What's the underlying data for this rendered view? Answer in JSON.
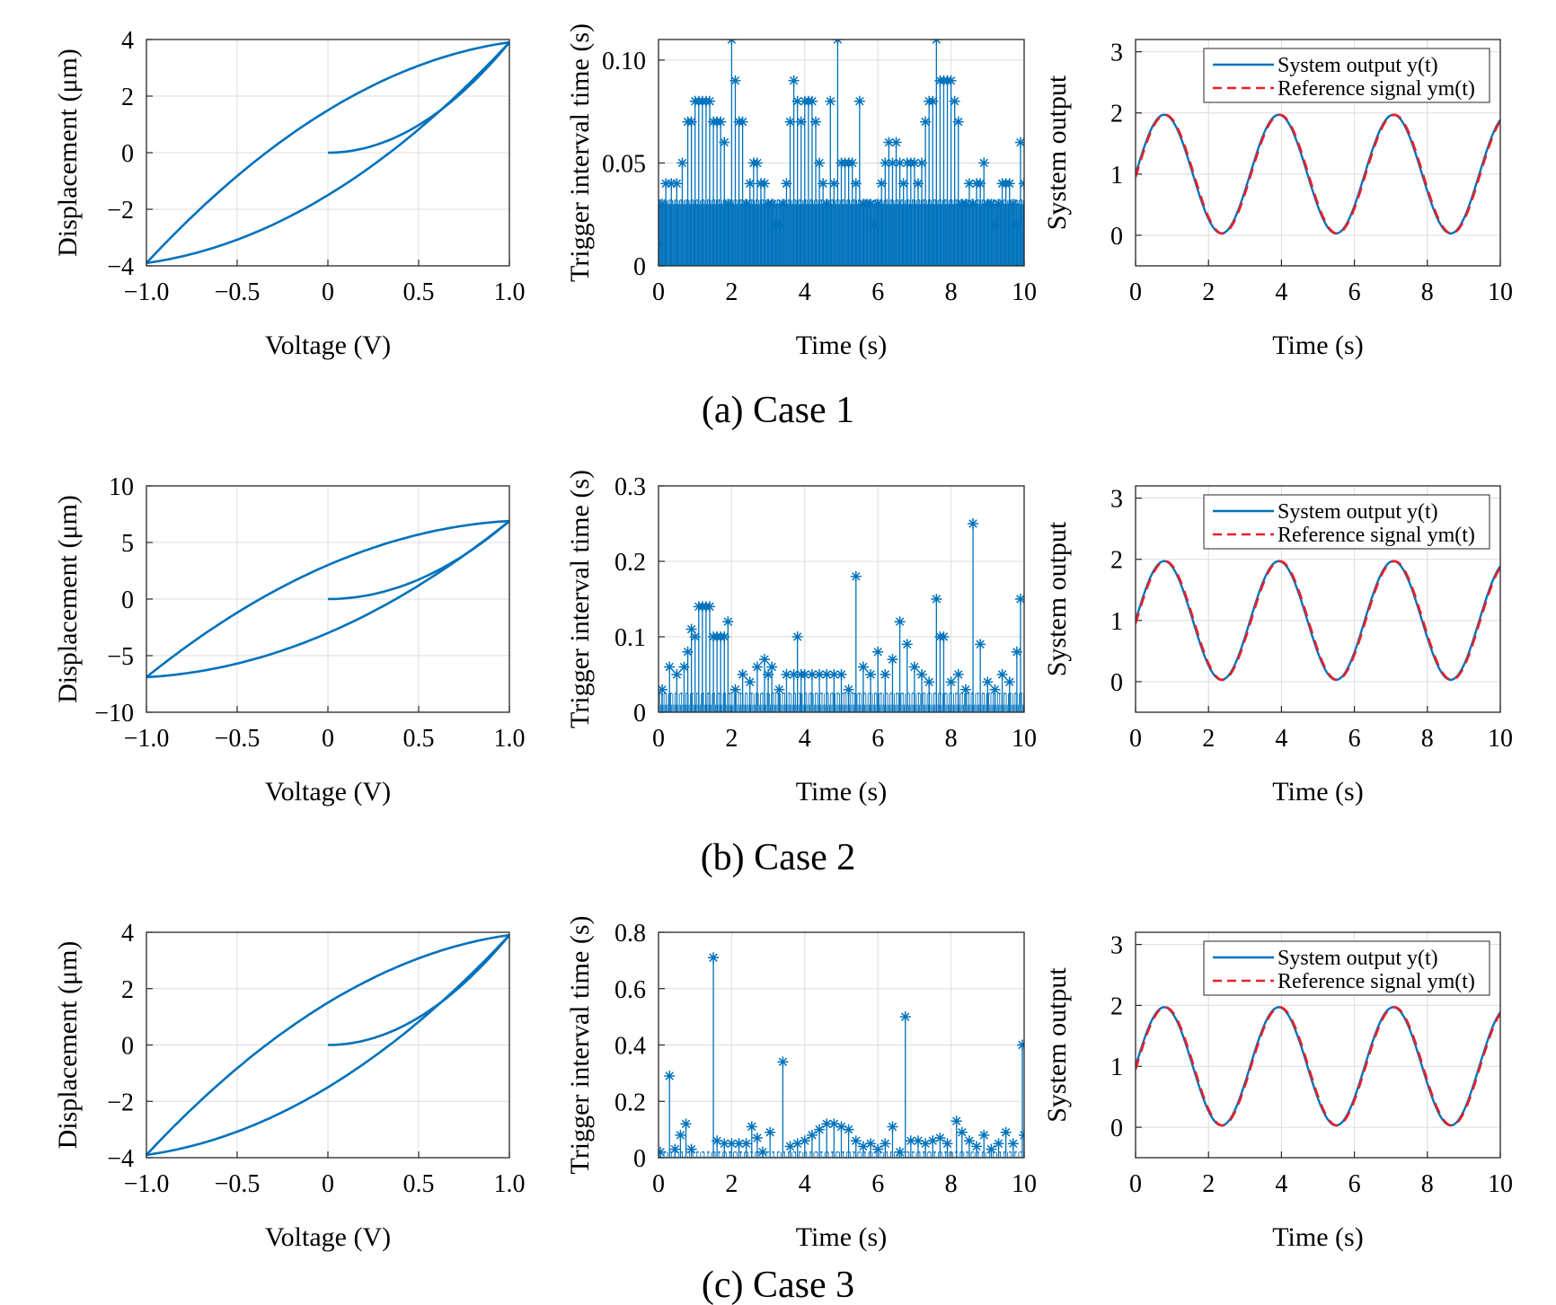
{
  "colors": {
    "series": "#0072BD",
    "reference": "#E8202A",
    "grid": "#dcdcdc"
  },
  "rows": [
    {
      "caption": "(a) Case 1",
      "chart_data": [
        {
          "type": "line",
          "title": "",
          "xlabel": "Voltage (V)",
          "ylabel": "Displacement (μm)",
          "xlim": [
            -1,
            1
          ],
          "ylim": [
            -4,
            4
          ],
          "xticks": [
            -1,
            -0.5,
            0,
            0.5,
            1
          ],
          "xtick_labels": [
            "−1.0",
            "−0.5",
            "0",
            "0.5",
            "1.0"
          ],
          "yticks": [
            -4,
            -2,
            0,
            2,
            4
          ],
          "ytick_labels": [
            "−4",
            "−2",
            "0",
            "2",
            "4"
          ],
          "grid": true,
          "hysteresis": {
            "amplitude": 3.9,
            "intercept": 1.5,
            "initial_end": 3.9
          }
        },
        {
          "type": "stem",
          "title": "",
          "xlabel": "Time (s)",
          "ylabel": "Trigger interval time (s)",
          "xlim": [
            0,
            10
          ],
          "ylim": [
            0,
            0.11
          ],
          "xticks": [
            0,
            2,
            4,
            6,
            8,
            10
          ],
          "xtick_labels": [
            "0",
            "2",
            "4",
            "6",
            "8",
            "10"
          ],
          "yticks": [
            0,
            0.05,
            0.1
          ],
          "ytick_labels": [
            "0",
            "0.05",
            "0.10"
          ],
          "grid": true,
          "x": [
            0,
            0.1,
            0.2,
            0.35,
            0.5,
            0.65,
            0.8,
            0.9,
            1.0,
            1.1,
            1.2,
            1.3,
            1.4,
            1.5,
            1.6,
            1.7,
            1.8,
            1.9,
            2.0,
            2.1,
            2.2,
            2.3,
            2.4,
            2.5,
            2.6,
            2.7,
            2.8,
            2.9,
            3.0,
            3.1,
            3.2,
            3.3,
            3.4,
            3.5,
            3.6,
            3.7,
            3.8,
            3.9,
            4.0,
            4.1,
            4.2,
            4.3,
            4.4,
            4.5,
            4.6,
            4.7,
            4.8,
            4.9,
            5.0,
            5.1,
            5.2,
            5.3,
            5.4,
            5.5,
            5.6,
            5.7,
            5.8,
            5.9,
            6.0,
            6.1,
            6.2,
            6.3,
            6.4,
            6.5,
            6.6,
            6.7,
            6.8,
            6.9,
            7.0,
            7.1,
            7.2,
            7.3,
            7.4,
            7.5,
            7.6,
            7.7,
            7.8,
            7.9,
            8.0,
            8.1,
            8.2,
            8.3,
            8.4,
            8.5,
            8.6,
            8.7,
            8.8,
            8.9,
            9.0,
            9.1,
            9.2,
            9.3,
            9.4,
            9.5,
            9.6,
            9.7,
            9.8,
            9.9,
            10.0
          ],
          "values": [
            0.011,
            0.03,
            0.04,
            0.04,
            0.04,
            0.05,
            0.07,
            0.07,
            0.08,
            0.08,
            0.08,
            0.08,
            0.08,
            0.07,
            0.07,
            0.07,
            0.06,
            0.03,
            0.11,
            0.09,
            0.07,
            0.07,
            0.03,
            0.04,
            0.05,
            0.05,
            0.04,
            0.04,
            0.03,
            0.03,
            0.02,
            0.02,
            0.03,
            0.04,
            0.07,
            0.09,
            0.08,
            0.07,
            0.08,
            0.08,
            0.08,
            0.07,
            0.05,
            0.04,
            0.03,
            0.08,
            0.04,
            0.11,
            0.05,
            0.05,
            0.05,
            0.05,
            0.04,
            0.08,
            0.03,
            0.03,
            0.03,
            0.02,
            0.03,
            0.04,
            0.05,
            0.06,
            0.05,
            0.06,
            0.05,
            0.04,
            0.05,
            0.05,
            0.05,
            0.04,
            0.05,
            0.07,
            0.08,
            0.08,
            0.11,
            0.09,
            0.09,
            0.09,
            0.09,
            0.08,
            0.07,
            0.03,
            0.03,
            0.04,
            0.03,
            0.04,
            0.04,
            0.05,
            0.03,
            0.03,
            0.02,
            0.03,
            0.04,
            0.04,
            0.04,
            0.03,
            0.02,
            0.06,
            0.04
          ],
          "dense_band": {
            "values": [
              0.03,
              0.032
            ],
            "step": 0.02
          }
        },
        {
          "type": "line",
          "title": "",
          "xlabel": "Time (s)",
          "ylabel": "System output",
          "xlim": [
            0,
            10
          ],
          "ylim": [
            -0.5,
            3.2
          ],
          "xticks": [
            0,
            2,
            4,
            6,
            8,
            10
          ],
          "xtick_labels": [
            "0",
            "2",
            "4",
            "6",
            "8",
            "10"
          ],
          "yticks": [
            0,
            1,
            2,
            3
          ],
          "ytick_labels": [
            "0",
            "1",
            "2",
            "3"
          ],
          "grid": true,
          "legend": {
            "position": "top-right",
            "entries": [
              "System output y(t)",
              "Reference signal ym(t)"
            ]
          },
          "series": [
            {
              "name": "System output y(t)",
              "function": "1 + 0.97*sin(2*t)"
            },
            {
              "name": "Reference signal ym(t)",
              "function": "1 + 0.97*sin(2*t - 0.05)"
            }
          ]
        }
      ]
    },
    {
      "caption": "(b) Case 2",
      "chart_data": [
        {
          "type": "line",
          "title": "",
          "xlabel": "Voltage (V)",
          "ylabel": "Displacement (μm)",
          "xlim": [
            -1,
            1
          ],
          "ylim": [
            -10,
            10
          ],
          "xticks": [
            -1,
            -0.5,
            0,
            0.5,
            1
          ],
          "xtick_labels": [
            "−1.0",
            "−0.5",
            "0",
            "0.5",
            "1.0"
          ],
          "yticks": [
            -10,
            -5,
            0,
            5,
            10
          ],
          "ytick_labels": [
            "−10",
            "−5",
            "0",
            "5",
            "10"
          ],
          "grid": true,
          "hysteresis": {
            "amplitude": 6.9,
            "intercept": 3.0,
            "initial_end": 6.9
          }
        },
        {
          "type": "stem",
          "title": "",
          "xlabel": "Time (s)",
          "ylabel": "Trigger interval time (s)",
          "xlim": [
            0,
            10
          ],
          "ylim": [
            0,
            0.3
          ],
          "xticks": [
            0,
            2,
            4,
            6,
            8,
            10
          ],
          "xtick_labels": [
            "0",
            "2",
            "4",
            "6",
            "8",
            "10"
          ],
          "yticks": [
            0,
            0.1,
            0.2,
            0.3
          ],
          "ytick_labels": [
            "0",
            "0.1",
            "0.2",
            "0.3"
          ],
          "grid": true,
          "x": [
            0.1,
            0.3,
            0.5,
            0.7,
            0.8,
            0.9,
            1.0,
            1.1,
            1.2,
            1.3,
            1.4,
            1.5,
            1.6,
            1.7,
            1.8,
            1.9,
            2.1,
            2.3,
            2.5,
            2.7,
            2.9,
            3.0,
            3.1,
            3.3,
            3.5,
            3.7,
            3.8,
            3.9,
            4.0,
            4.2,
            4.4,
            4.6,
            4.8,
            5.0,
            5.2,
            5.4,
            5.6,
            5.8,
            6.0,
            6.2,
            6.4,
            6.6,
            6.8,
            7.0,
            7.2,
            7.4,
            7.6,
            7.7,
            7.8,
            8.0,
            8.2,
            8.4,
            8.6,
            8.8,
            9.0,
            9.2,
            9.4,
            9.6,
            9.8,
            9.9
          ],
          "values": [
            0.03,
            0.06,
            0.05,
            0.06,
            0.08,
            0.11,
            0.1,
            0.14,
            0.14,
            0.14,
            0.14,
            0.1,
            0.1,
            0.1,
            0.1,
            0.12,
            0.03,
            0.05,
            0.04,
            0.06,
            0.07,
            0.05,
            0.06,
            0.03,
            0.05,
            0.05,
            0.1,
            0.05,
            0.05,
            0.05,
            0.05,
            0.05,
            0.05,
            0.05,
            0.03,
            0.18,
            0.06,
            0.05,
            0.08,
            0.05,
            0.07,
            0.12,
            0.09,
            0.06,
            0.05,
            0.04,
            0.15,
            0.1,
            0.1,
            0.04,
            0.05,
            0.03,
            0.25,
            0.09,
            0.04,
            0.03,
            0.05,
            0.04,
            0.08,
            0.15
          ],
          "dense_band": {
            "values": [
              0.01,
              0.025
            ],
            "step": 0.03
          }
        },
        {
          "type": "line",
          "title": "",
          "xlabel": "Time (s)",
          "ylabel": "System output",
          "xlim": [
            0,
            10
          ],
          "ylim": [
            -0.5,
            3.2
          ],
          "xticks": [
            0,
            2,
            4,
            6,
            8,
            10
          ],
          "xtick_labels": [
            "0",
            "2",
            "4",
            "6",
            "8",
            "10"
          ],
          "yticks": [
            0,
            1,
            2,
            3
          ],
          "ytick_labels": [
            "0",
            "1",
            "2",
            "3"
          ],
          "grid": true,
          "legend": {
            "position": "top-right",
            "entries": [
              "System output y(t)",
              "Reference signal ym(t)"
            ]
          },
          "series": [
            {
              "name": "System output y(t)",
              "function": "1 + 0.97*sin(2*t)"
            },
            {
              "name": "Reference signal ym(t)",
              "function": "1 + 0.97*sin(2*t - 0.05)"
            }
          ]
        }
      ]
    },
    {
      "caption": "(c) Case 3",
      "chart_data": [
        {
          "type": "line",
          "title": "",
          "xlabel": "Voltage (V)",
          "ylabel": "Displacement (μm)",
          "xlim": [
            -1,
            1
          ],
          "ylim": [
            -4,
            4
          ],
          "xticks": [
            -1,
            -0.5,
            0,
            0.5,
            1
          ],
          "xtick_labels": [
            "−1.0",
            "−0.5",
            "0",
            "0.5",
            "1.0"
          ],
          "yticks": [
            -4,
            -2,
            0,
            2,
            4
          ],
          "ytick_labels": [
            "−4",
            "−2",
            "0",
            "2",
            "4"
          ],
          "grid": true,
          "hysteresis": {
            "amplitude": 3.9,
            "intercept": 1.5,
            "initial_end": 3.9
          }
        },
        {
          "type": "stem",
          "title": "",
          "xlabel": "Time (s)",
          "ylabel": "Trigger interval time (s)",
          "xlim": [
            0,
            10
          ],
          "ylim": [
            0,
            0.8
          ],
          "xticks": [
            0,
            2,
            4,
            6,
            8,
            10
          ],
          "xtick_labels": [
            "0",
            "2",
            "4",
            "6",
            "8",
            "10"
          ],
          "yticks": [
            0,
            0.2,
            0.4,
            0.6,
            0.8
          ],
          "ytick_labels": [
            "0",
            "0.2",
            "0.4",
            "0.6",
            "0.8"
          ],
          "grid": true,
          "x": [
            0.05,
            0.3,
            0.45,
            0.6,
            0.75,
            0.9,
            1.5,
            1.6,
            1.8,
            2.0,
            2.2,
            2.4,
            2.55,
            2.7,
            2.85,
            3.05,
            3.4,
            3.6,
            3.8,
            4.0,
            4.2,
            4.4,
            4.6,
            4.8,
            5.0,
            5.2,
            5.4,
            5.6,
            5.8,
            6.0,
            6.2,
            6.4,
            6.6,
            6.75,
            6.9,
            7.1,
            7.3,
            7.5,
            7.7,
            7.9,
            8.15,
            8.3,
            8.5,
            8.7,
            8.9,
            9.1,
            9.3,
            9.5,
            9.7,
            9.95,
            10.0
          ],
          "values": [
            0.02,
            0.29,
            0.03,
            0.08,
            0.12,
            0.03,
            0.71,
            0.06,
            0.05,
            0.05,
            0.05,
            0.05,
            0.11,
            0.07,
            0.02,
            0.09,
            0.34,
            0.04,
            0.05,
            0.06,
            0.08,
            0.1,
            0.12,
            0.12,
            0.11,
            0.1,
            0.06,
            0.04,
            0.05,
            0.03,
            0.05,
            0.11,
            0.02,
            0.5,
            0.06,
            0.06,
            0.05,
            0.06,
            0.07,
            0.05,
            0.13,
            0.09,
            0.06,
            0.04,
            0.08,
            0.03,
            0.05,
            0.09,
            0.05,
            0.4,
            0.08
          ],
          "dense_band": {
            "values": [
              0.005,
              0.02
            ],
            "step": 0.05
          }
        },
        {
          "type": "line",
          "title": "",
          "xlabel": "Time (s)",
          "ylabel": "System output",
          "xlim": [
            0,
            10
          ],
          "ylim": [
            -0.5,
            3.2
          ],
          "xticks": [
            0,
            2,
            4,
            6,
            8,
            10
          ],
          "xtick_labels": [
            "0",
            "2",
            "4",
            "6",
            "8",
            "10"
          ],
          "yticks": [
            0,
            1,
            2,
            3
          ],
          "ytick_labels": [
            "0",
            "1",
            "2",
            "3"
          ],
          "grid": true,
          "legend": {
            "position": "top-right",
            "entries": [
              "System output y(t)",
              "Reference signal ym(t)"
            ]
          },
          "series": [
            {
              "name": "System output y(t)",
              "function": "1 + 0.97*sin(2*t)"
            },
            {
              "name": "Reference signal ym(t)",
              "function": "1 + 0.97*sin(2*t - 0.05)"
            }
          ]
        }
      ]
    }
  ]
}
